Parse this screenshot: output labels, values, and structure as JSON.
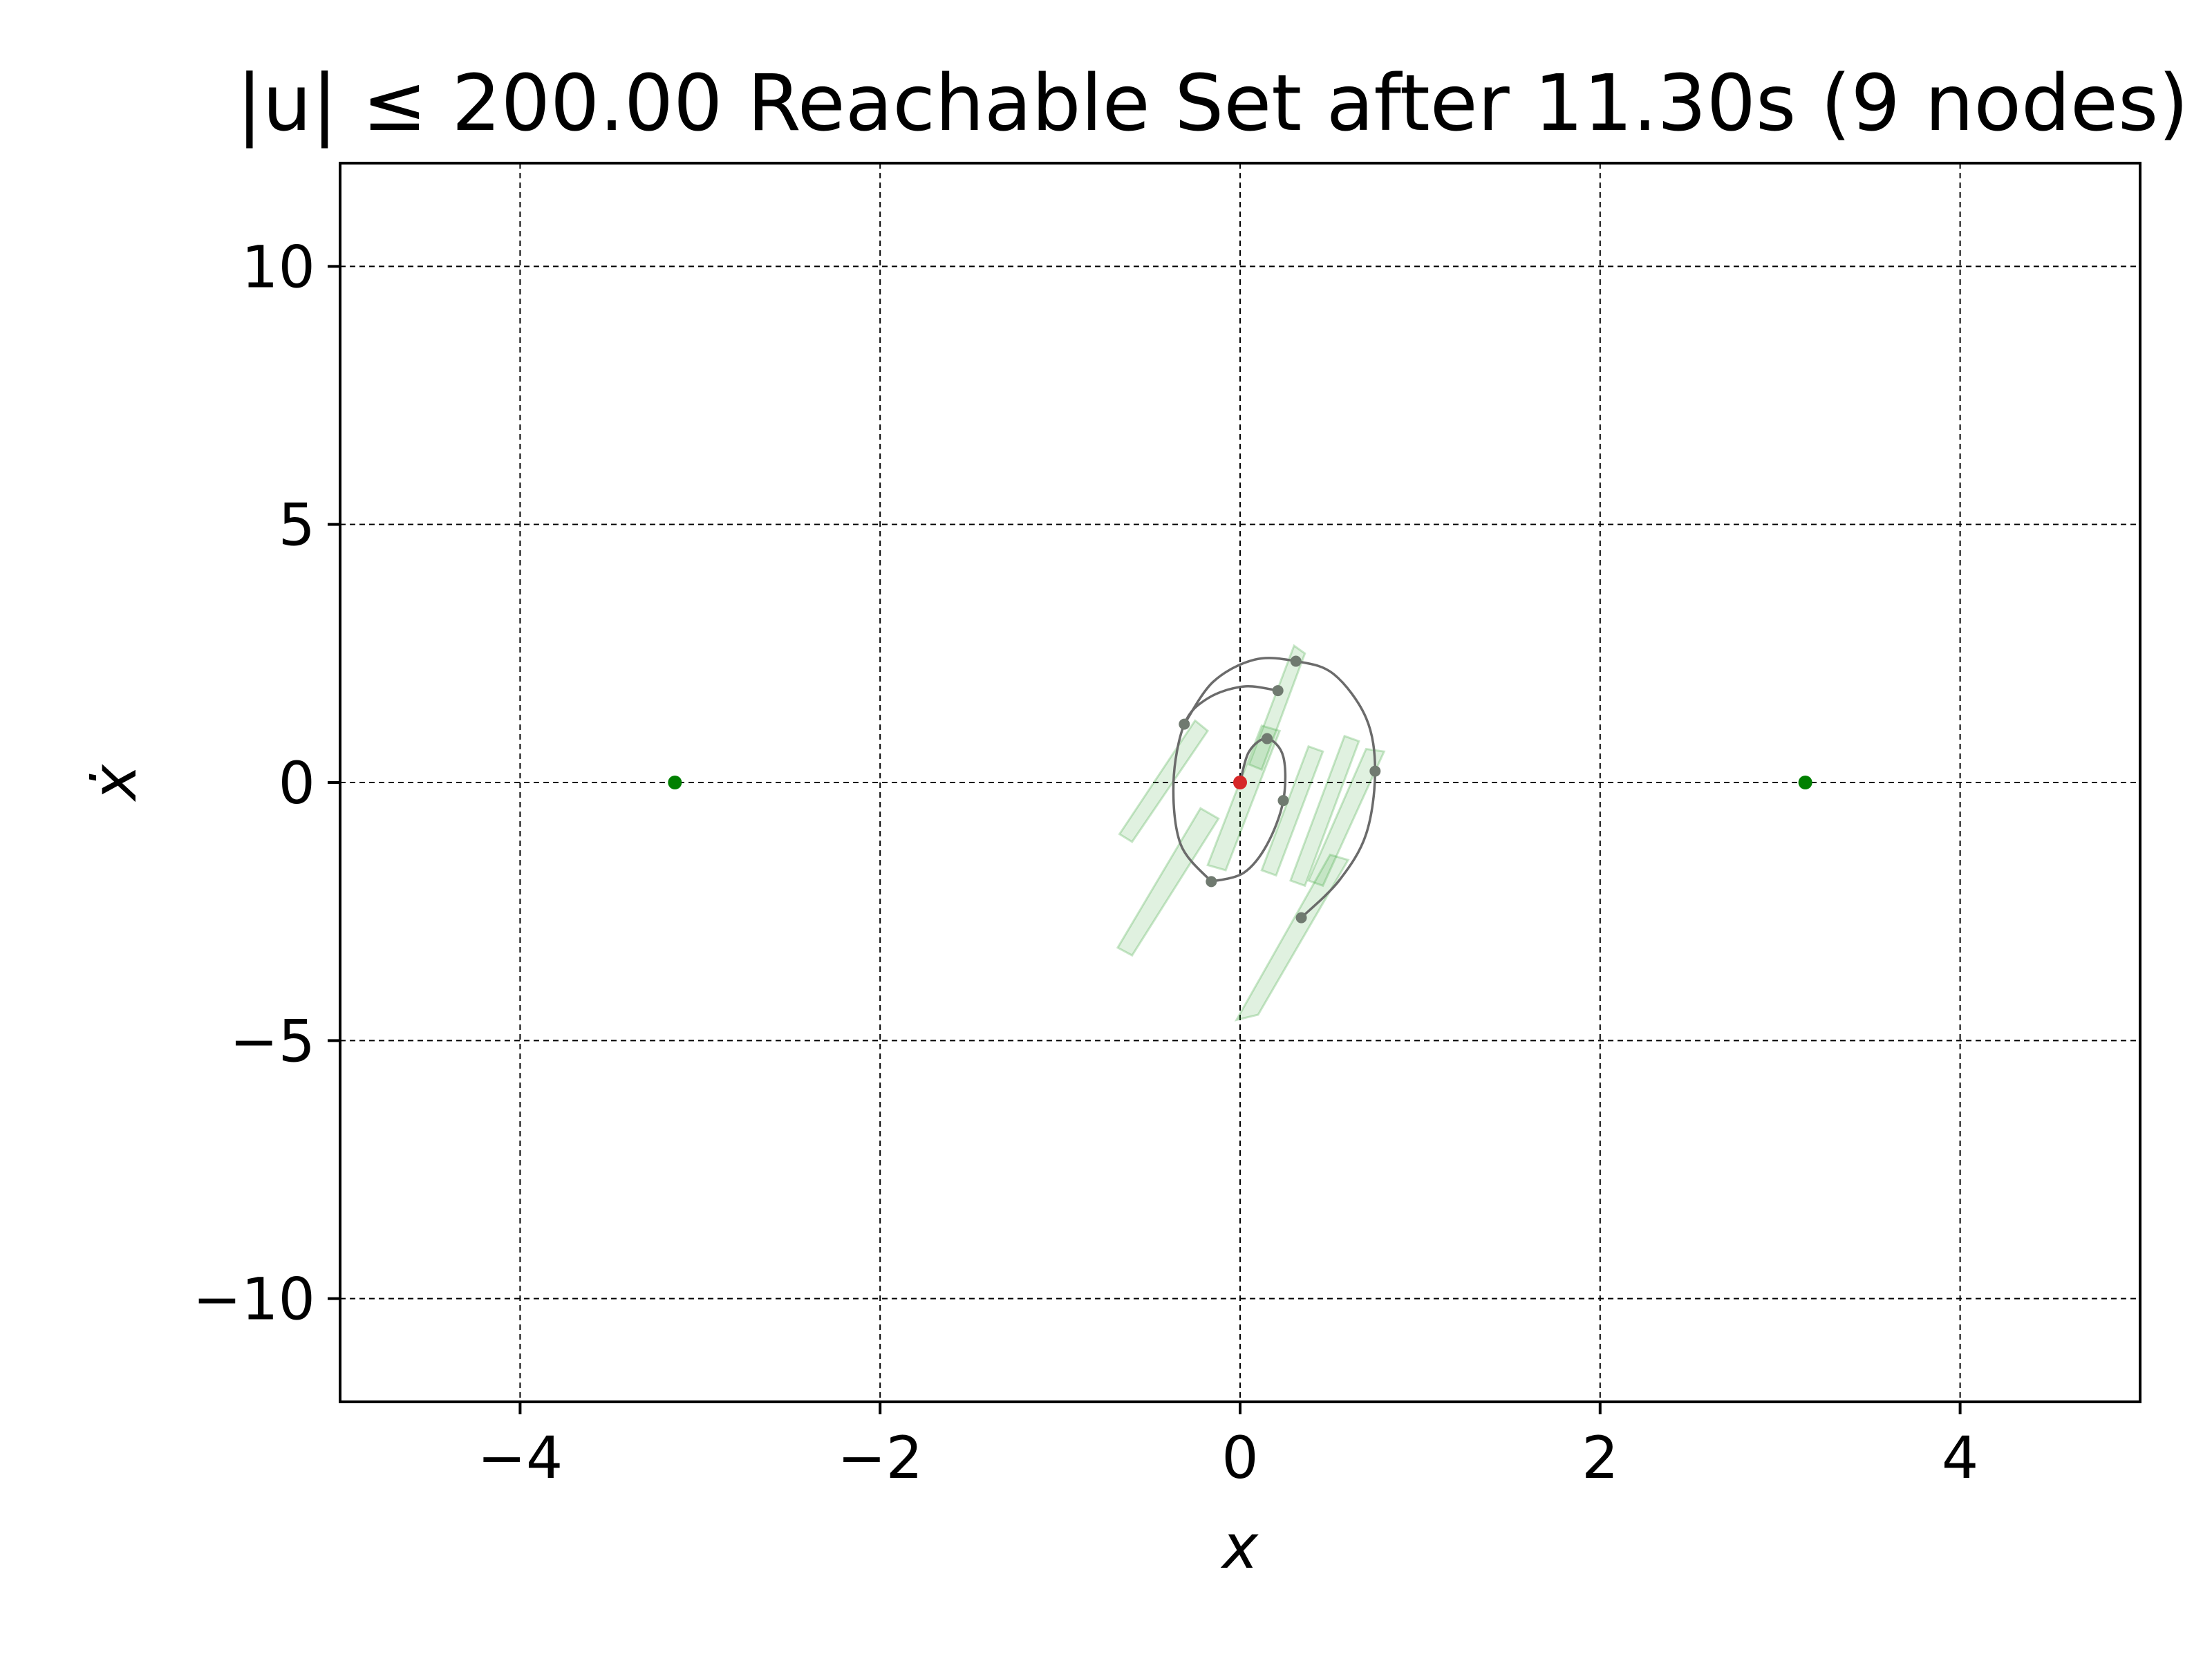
{
  "chart_data": {
    "type": "scatter",
    "title": "|u| ≤ 200.00 Reachable Set after 11.30s (9 nodes)",
    "xlabel": "x",
    "ylabel": "ẋ",
    "xlim": [
      -5,
      5
    ],
    "ylim": [
      -12,
      12
    ],
    "grid": true,
    "x_ticks": [
      -4,
      -2,
      0,
      2,
      4
    ],
    "y_ticks": [
      -10,
      -5,
      0,
      5,
      10
    ],
    "x_tick_labels": [
      "−4",
      "−2",
      "0",
      "2",
      "4"
    ],
    "y_tick_labels": [
      "−10",
      "−5",
      "0",
      "5",
      "10"
    ],
    "start_point": {
      "x": 0.0,
      "y": 0.0,
      "color": "#d62728"
    },
    "goal_points": [
      {
        "x": -3.14,
        "y": 0.0,
        "color": "#008000"
      },
      {
        "x": 3.14,
        "y": 0.0,
        "color": "#008000"
      }
    ],
    "tree_nodes": [
      {
        "x": 0.15,
        "y": 0.85
      },
      {
        "x": 0.24,
        "y": -0.35
      },
      {
        "x": -0.16,
        "y": -1.92
      },
      {
        "x": -0.31,
        "y": 1.13
      },
      {
        "x": 0.21,
        "y": 1.78
      },
      {
        "x": 0.31,
        "y": 2.35
      },
      {
        "x": 0.75,
        "y": 0.22
      },
      {
        "x": 0.34,
        "y": -2.62
      }
    ],
    "trajectories": [
      [
        [
          0.0,
          0.0
        ],
        [
          0.05,
          0.6
        ],
        [
          0.15,
          0.85
        ],
        [
          0.24,
          0.5
        ],
        [
          0.24,
          -0.35
        ],
        [
          0.15,
          -1.2
        ],
        [
          0.02,
          -1.75
        ],
        [
          -0.16,
          -1.92
        ]
      ],
      [
        [
          -0.16,
          -1.92
        ],
        [
          -0.33,
          -1.2
        ],
        [
          -0.37,
          0.0
        ],
        [
          -0.31,
          1.13
        ],
        [
          -0.18,
          1.63
        ],
        [
          0.02,
          1.86
        ],
        [
          0.21,
          1.78
        ]
      ],
      [
        [
          -0.31,
          1.13
        ],
        [
          -0.15,
          1.95
        ],
        [
          0.08,
          2.38
        ],
        [
          0.31,
          2.35
        ],
        [
          0.52,
          2.1
        ],
        [
          0.7,
          1.25
        ],
        [
          0.75,
          0.22
        ],
        [
          0.7,
          -1.0
        ],
        [
          0.55,
          -1.9
        ],
        [
          0.34,
          -2.62
        ]
      ]
    ],
    "reachable_regions": [
      [
        [
          -0.67,
          -1.0
        ],
        [
          -0.25,
          1.2
        ],
        [
          -0.18,
          1.0
        ],
        [
          -0.6,
          -1.15
        ]
      ],
      [
        [
          -0.18,
          -1.6
        ],
        [
          0.12,
          1.1
        ],
        [
          0.22,
          1.0
        ],
        [
          -0.08,
          -1.7
        ]
      ],
      [
        [
          -0.68,
          -3.2
        ],
        [
          -0.22,
          -0.5
        ],
        [
          -0.12,
          -0.7
        ],
        [
          -0.6,
          -3.35
        ]
      ],
      [
        [
          0.05,
          0.35
        ],
        [
          0.3,
          2.65
        ],
        [
          0.36,
          2.5
        ],
        [
          0.12,
          0.25
        ]
      ],
      [
        [
          0.12,
          -1.7
        ],
        [
          0.38,
          0.7
        ],
        [
          0.46,
          0.6
        ],
        [
          0.2,
          -1.8
        ]
      ],
      [
        [
          0.28,
          -1.9
        ],
        [
          0.58,
          0.9
        ],
        [
          0.66,
          0.8
        ],
        [
          0.36,
          -2.0
        ]
      ],
      [
        [
          0.38,
          -1.9
        ],
        [
          0.7,
          0.65
        ],
        [
          0.8,
          0.6
        ],
        [
          0.46,
          -2.0
        ]
      ],
      [
        [
          -0.02,
          -4.6
        ],
        [
          0.5,
          -1.4
        ],
        [
          0.6,
          -1.5
        ],
        [
          0.1,
          -4.5
        ]
      ]
    ]
  }
}
